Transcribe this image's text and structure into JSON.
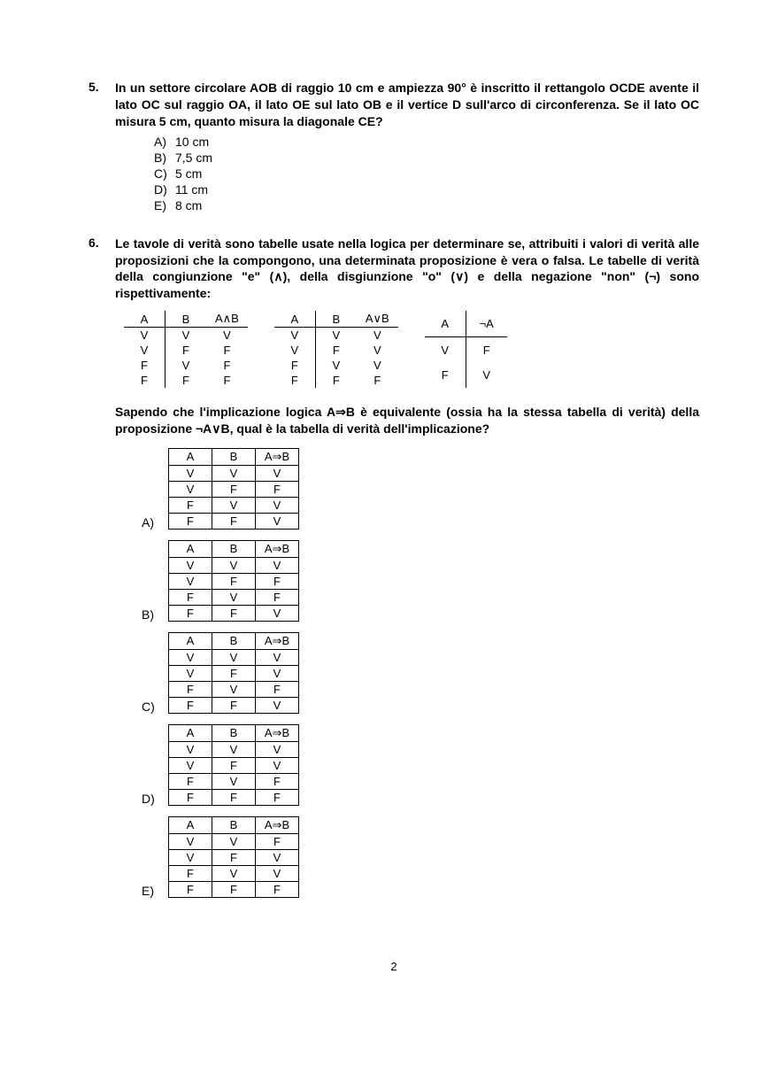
{
  "page_number": "2",
  "questions": [
    {
      "number": "5.",
      "stem": "In un settore circolare AOB di raggio 10 cm e ampiezza 90° è inscritto il rettangolo OCDE avente il lato OC sul raggio OA, il lato OE sul lato OB e il vertice D sull'arco di circonferenza. Se il lato OC misura 5 cm, quanto misura la diagonale CE?",
      "options": [
        {
          "label": "A)",
          "text": "10 cm"
        },
        {
          "label": "B)",
          "text": "7,5 cm"
        },
        {
          "label": "C)",
          "text": "5 cm"
        },
        {
          "label": "D)",
          "text": "11 cm"
        },
        {
          "label": "E)",
          "text": "8 cm"
        }
      ]
    },
    {
      "number": "6.",
      "stem": "Le tavole di verità sono tabelle usate nella logica per determinare se, attribuiti i valori di verità alle proposizioni che la compongono, una determinata proposizione è vera o falsa. Le tabelle di verità della congiunzione \"e\" (∧), della disgiunzione \"o\" (∨) e della negazione \"non\" (¬) sono rispettivamente:",
      "truth_tables": [
        {
          "headers": [
            "A",
            "B",
            "A∧B"
          ],
          "rows": [
            [
              "V",
              "V",
              "V"
            ],
            [
              "V",
              "F",
              "F"
            ],
            [
              "F",
              "V",
              "F"
            ],
            [
              "F",
              "F",
              "F"
            ]
          ]
        },
        {
          "headers": [
            "A",
            "B",
            "A∨B"
          ],
          "rows": [
            [
              "V",
              "V",
              "V"
            ],
            [
              "V",
              "F",
              "V"
            ],
            [
              "F",
              "V",
              "V"
            ],
            [
              "F",
              "F",
              "F"
            ]
          ]
        },
        {
          "headers": [
            "A",
            "¬A"
          ],
          "rows": [
            [
              "V",
              "F"
            ],
            [
              "F",
              "V"
            ]
          ]
        }
      ],
      "stem2": "Sapendo che l'implicazione logica A⇒B è equivalente (ossia ha la stessa tabella di verità) della proposizione ¬A∨B, qual è la tabella di verità dell'implicazione?",
      "option_tables": [
        {
          "label": "A)",
          "headers": [
            "A",
            "B",
            "A⇒B"
          ],
          "rows": [
            [
              "V",
              "V",
              "V"
            ],
            [
              "V",
              "F",
              "F"
            ],
            [
              "F",
              "V",
              "V"
            ],
            [
              "F",
              "F",
              "V"
            ]
          ]
        },
        {
          "label": "B)",
          "headers": [
            "A",
            "B",
            "A⇒B"
          ],
          "rows": [
            [
              "V",
              "V",
              "V"
            ],
            [
              "V",
              "F",
              "F"
            ],
            [
              "F",
              "V",
              "F"
            ],
            [
              "F",
              "F",
              "V"
            ]
          ]
        },
        {
          "label": "C)",
          "headers": [
            "A",
            "B",
            "A⇒B"
          ],
          "rows": [
            [
              "V",
              "V",
              "V"
            ],
            [
              "V",
              "F",
              "V"
            ],
            [
              "F",
              "V",
              "F"
            ],
            [
              "F",
              "F",
              "V"
            ]
          ]
        },
        {
          "label": "D)",
          "headers": [
            "A",
            "B",
            "A⇒B"
          ],
          "rows": [
            [
              "V",
              "V",
              "V"
            ],
            [
              "V",
              "F",
              "V"
            ],
            [
              "F",
              "V",
              "F"
            ],
            [
              "F",
              "F",
              "F"
            ]
          ]
        },
        {
          "label": "E)",
          "headers": [
            "A",
            "B",
            "A⇒B"
          ],
          "rows": [
            [
              "V",
              "V",
              "F"
            ],
            [
              "V",
              "F",
              "V"
            ],
            [
              "F",
              "V",
              "V"
            ],
            [
              "F",
              "F",
              "F"
            ]
          ]
        }
      ]
    }
  ]
}
